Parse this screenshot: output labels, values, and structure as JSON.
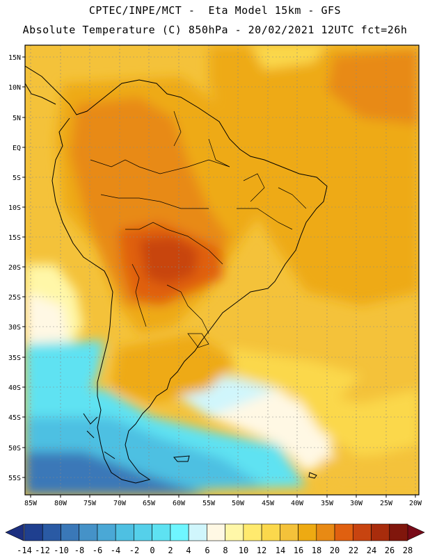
{
  "header": {
    "title_line1": "CPTEC/INPE/MCT -  Eta Model 15km - GFS",
    "title_line2": "Absolute Temperature (C) 850hPa - 20/02/2021 12UTC fct=26h"
  },
  "map": {
    "lat_labels": [
      "15N",
      "10N",
      "5N",
      "EQ",
      "5S",
      "10S",
      "15S",
      "20S",
      "25S",
      "30S",
      "35S",
      "40S",
      "45S",
      "50S",
      "55S"
    ],
    "lon_labels": [
      "85W",
      "80W",
      "75W",
      "70W",
      "65W",
      "60W",
      "55W",
      "50W",
      "45W",
      "40W",
      "35W",
      "30W",
      "25W",
      "20W"
    ]
  },
  "colorbar": {
    "labels": [
      "-14",
      "-12",
      "-10",
      "-8",
      "-6",
      "-4",
      "-2",
      "0",
      "2",
      "4",
      "6",
      "8",
      "10",
      "12",
      "14",
      "16",
      "18",
      "20",
      "22",
      "24",
      "26",
      "28"
    ],
    "colors": [
      "#1f3f8f",
      "#2a5aa4",
      "#3a78b8",
      "#4592c8",
      "#4aa8d6",
      "#4ec0e2",
      "#55d0ea",
      "#5ee2f2",
      "#6ff6ff",
      "#d0f6fc",
      "#fff8e4",
      "#fff7a8",
      "#ffea6e",
      "#fbd84c",
      "#f4c23a",
      "#eeaa12",
      "#e88a14",
      "#e06010",
      "#c84410",
      "#a82c0c",
      "#80160c"
    ],
    "under_color": "#1c2f80",
    "over_color": "#780a18"
  }
}
